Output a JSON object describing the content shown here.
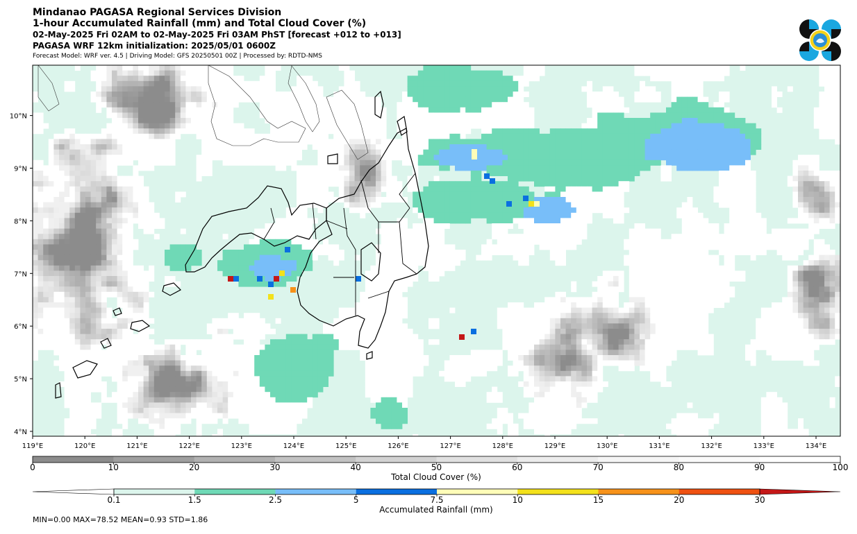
{
  "header": {
    "line1": "Mindanao PAGASA Regional Services Division",
    "line2": "1-hour Accumulated Rainfall (mm) and Total Cloud Cover (%)",
    "line3": "02-May-2025 Fri 02AM to 02-May-2025 Fri 03AM PhST [forecast +012 to +013]",
    "line4": "PAGASA WRF 12km initialization: 2025/05/01 0600Z",
    "line5": "Forecast Model: WRF ver. 4.5 | Driving Model: GFS 20250501 00Z | Processed by: RDTD-NMS"
  },
  "logo": {
    "icon": "pagasa-logo"
  },
  "map": {
    "lon_labels": [
      "119°E",
      "120°E",
      "121°E",
      "122°E",
      "123°E",
      "124°E",
      "125°E",
      "126°E",
      "127°E",
      "128°E",
      "129°E",
      "130°E",
      "131°E",
      "132°E",
      "133°E",
      "134°E"
    ],
    "lat_labels": [
      "4°N",
      "5°N",
      "6°N",
      "7°N",
      "8°N",
      "9°N",
      "10°N"
    ]
  },
  "cloud_bar": {
    "label": "Total Cloud Cover (%)",
    "ticks": [
      "0",
      "10",
      "20",
      "30",
      "40",
      "50",
      "60",
      "70",
      "80",
      "90",
      "100"
    ],
    "colors": [
      "#8c8c8c",
      "#9f9f9f",
      "#b1b1b1",
      "#c2c2c2",
      "#d2d2d2",
      "#e0e0e0",
      "#ececec",
      "#f5f5f5",
      "#fafafa",
      "#ffffff"
    ]
  },
  "rain_bar": {
    "label": "Accumulated Rainfall (mm)",
    "ticks": [
      "0.1",
      "1.5",
      "2.5",
      "5",
      "7.5",
      "10",
      "15",
      "20",
      "30"
    ],
    "colors": [
      "#ffffff",
      "#dcf5ec",
      "#6fd9b6",
      "#78bef9",
      "#0a6fe0",
      "#fffdb8",
      "#f3e11b",
      "#f7921a",
      "#ef5111",
      "#c41717"
    ]
  },
  "stats": "MIN=0.00   MAX=78.52   MEAN=0.93   STD=1.86"
}
